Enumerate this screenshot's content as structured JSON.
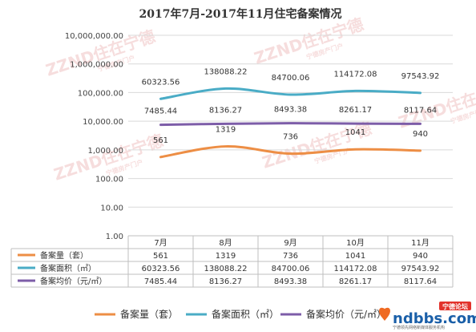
{
  "chart_data": {
    "type": "line",
    "title": "2017年7月-2017年11月住宅备案情况",
    "y_scale": "log",
    "ylim": [
      1,
      10000000
    ],
    "y_tick_labels": [
      "1.00",
      "10.00",
      "100.00",
      "1,000.00",
      "10,000.00",
      "100,000.00",
      "1,000,000.00",
      "10,000,000.00"
    ],
    "categories": [
      "7月",
      "8月",
      "9月",
      "10月",
      "11月"
    ],
    "grid": true,
    "legend_position": "bottom",
    "series": [
      {
        "name": "备案量（套）",
        "color": "#ed8e45",
        "values": [
          561,
          1319,
          736,
          1041,
          940
        ],
        "labels": [
          "561",
          "1319",
          "736",
          "1041",
          "940"
        ]
      },
      {
        "name": "备案面积（㎡）",
        "color": "#4aacc6",
        "values": [
          60323.56,
          138088.22,
          84700.06,
          114172.08,
          97543.92
        ],
        "labels": [
          "60323.56",
          "138088.22",
          "84700.06",
          "114172.08",
          "97543.92"
        ]
      },
      {
        "name": "备案均价（元/㎡）",
        "color": "#7d5da8",
        "values": [
          7485.44,
          8136.27,
          8493.38,
          8261.17,
          8117.64
        ],
        "labels": [
          "7485.44",
          "8136.27",
          "8493.38",
          "8261.17",
          "8117.64"
        ]
      }
    ],
    "data_table": true
  },
  "watermark": {
    "text_cn": "住在宁德",
    "text_en": "ZZND",
    "tagline": "宁德房产门户"
  },
  "brand": {
    "name": "ndbbs.com",
    "badge": "宁德论坛",
    "tagline": "宁德领先网络新媒体服务机构"
  }
}
